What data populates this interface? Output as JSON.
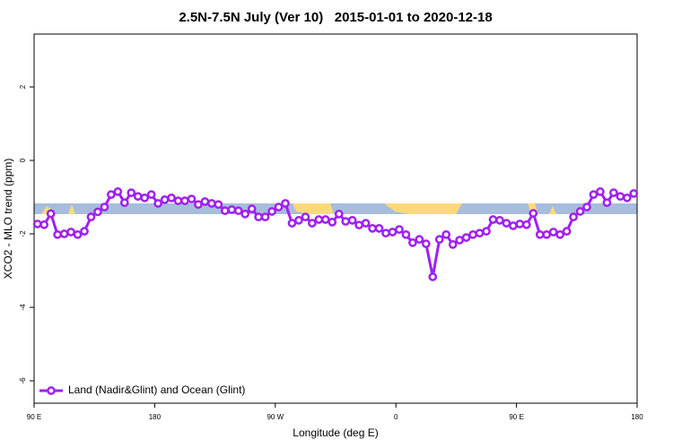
{
  "chart_data": {
    "type": "line",
    "title": "2.5N-7.5N July (Ver 10)   2015-01-01 to 2020-12-18",
    "x_label": "Longitude (deg E)",
    "y_label": "XCO2 - MLO trend (ppm)",
    "x": [
      92.5,
      97.5,
      102.5,
      107.5,
      112.5,
      117.5,
      122.5,
      127.5,
      132.5,
      137.5,
      142.5,
      147.5,
      152.5,
      157.5,
      162.5,
      167.5,
      172.5,
      177.5,
      182.5,
      187.5,
      192.5,
      197.5,
      202.5,
      207.5,
      212.5,
      217.5,
      222.5,
      227.5,
      232.5,
      237.5,
      242.5,
      247.5,
      252.5,
      257.5,
      262.5,
      267.5,
      272.5,
      277.5,
      282.5,
      287.5,
      292.5,
      297.5,
      302.5,
      307.5,
      312.5,
      317.5,
      322.5,
      327.5,
      332.5,
      337.5,
      342.5,
      347.5,
      352.5,
      357.5,
      362.5,
      367.5,
      372.5,
      377.5,
      382.5,
      387.5,
      392.5,
      397.5,
      402.5,
      407.5,
      412.5,
      417.5,
      422.5,
      427.5,
      432.5,
      437.5,
      442.5,
      447.5,
      452.5,
      457.5,
      462.5,
      467.5,
      472.5,
      477.5,
      482.5,
      487.5,
      492.5,
      497.5,
      502.5,
      507.5,
      512.5,
      517.5,
      522.5,
      527.5,
      532.5,
      537.5
    ],
    "series": [
      {
        "name": "Land (Nadir&Glint) and Ocean (Glint)",
        "color": "#a020f0",
        "values": [
          -1.73,
          -1.75,
          -1.45,
          -2.02,
          -2.0,
          -1.95,
          -2.02,
          -1.93,
          -1.54,
          -1.4,
          -1.27,
          -0.93,
          -0.85,
          -1.15,
          -0.88,
          -0.98,
          -1.02,
          -0.93,
          -1.17,
          -1.07,
          -1.02,
          -1.1,
          -1.1,
          -1.05,
          -1.2,
          -1.12,
          -1.17,
          -1.2,
          -1.37,
          -1.34,
          -1.37,
          -1.46,
          -1.32,
          -1.54,
          -1.54,
          -1.39,
          -1.27,
          -1.17,
          -1.71,
          -1.63,
          -1.54,
          -1.71,
          -1.61,
          -1.61,
          -1.68,
          -1.46,
          -1.66,
          -1.63,
          -1.76,
          -1.71,
          -1.85,
          -1.85,
          -1.98,
          -1.95,
          -1.88,
          -2.02,
          -2.24,
          -2.15,
          -2.27,
          -3.17,
          -2.15,
          -2.02,
          -2.29,
          -2.17,
          -2.1,
          -2.02,
          -1.98,
          -1.93,
          -1.61,
          -1.63,
          -1.71,
          -1.78,
          -1.73,
          -1.75,
          -1.44,
          -2.02,
          -2.02,
          -1.95,
          -2.02,
          -1.93,
          -1.54,
          -1.39,
          -1.27,
          -0.93,
          -0.85,
          -1.15,
          -0.88,
          -0.98,
          -1.02,
          -0.9
        ]
      }
    ],
    "xlim": [
      90,
      540
    ],
    "xticks": [
      {
        "value": 90,
        "label": "90 E"
      },
      180,
      {
        "value": 270,
        "label": "90 W"
      },
      {
        "value": 360,
        "label": "0"
      },
      {
        "value": 450,
        "label": "90 E"
      },
      {
        "value": 540,
        "label": "180"
      }
    ],
    "ylim": [
      -6.61,
      3.44
    ],
    "yticks": [
      2,
      0,
      -2,
      -4,
      -6
    ],
    "legend": "bottom-left"
  }
}
